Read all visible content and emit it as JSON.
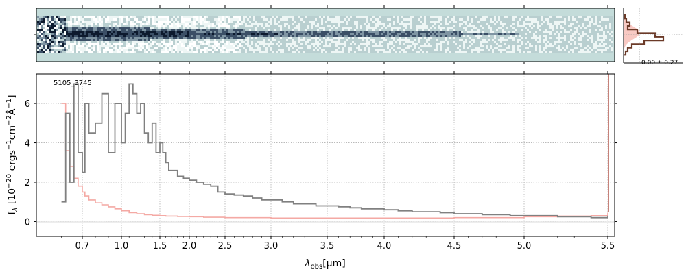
{
  "chart_data": [
    {
      "type": "heatmap",
      "name": "2D spectrum",
      "colormap": "bone-teal",
      "background_color": "#c4dcda"
    },
    {
      "type": "line",
      "object_label": "5105_3745",
      "xlabel_main": "λ",
      "xlabel_sub": "obs",
      "xlabel_unit": "[μm]",
      "ylabel": "f_λ [10^-20 ergs^-1cm^-2Å^-1]",
      "ylabel_parts": {
        "f": "f",
        "sub": "λ",
        "a": " [10",
        "exp1": "−20",
        "b": " ergs",
        "exp2": "−1",
        "c": "cm",
        "exp3": "−2",
        "d": "Å",
        "exp4": "−1",
        "e": "]"
      },
      "x_scale": "nonlinear (prism dispersion)",
      "x_ticks": [
        "0.7",
        "1.0",
        "1.5",
        "2.0",
        "2.5",
        "3.0",
        "3.5",
        "4.0",
        "4.5",
        "5.0",
        "5.5"
      ],
      "y_ticks": [
        "0",
        "2",
        "4",
        "6"
      ],
      "ylim": [
        -0.75,
        7.5
      ],
      "grid": true,
      "series": [
        {
          "color": "#808080",
          "x": [
            0.6,
            0.62,
            0.64,
            0.66,
            0.68,
            0.7,
            0.72,
            0.75,
            0.8,
            0.85,
            0.9,
            0.95,
            1.0,
            1.05,
            1.1,
            1.15,
            1.2,
            1.25,
            1.3,
            1.35,
            1.4,
            1.45,
            1.5,
            1.55,
            1.6,
            1.65,
            1.7,
            1.8,
            1.9,
            2.0,
            2.1,
            2.2,
            2.3,
            2.4,
            2.5,
            2.6,
            2.7,
            2.8,
            2.9,
            3.0,
            3.1,
            3.2,
            3.3,
            3.4,
            3.5,
            3.6,
            3.7,
            3.8,
            3.9,
            4.0,
            4.1,
            4.2,
            4.3,
            4.4,
            4.5,
            4.6,
            4.7,
            4.8,
            4.9,
            5.0,
            5.1,
            5.2,
            5.3,
            5.4,
            5.5
          ],
          "y": [
            1.0,
            5.5,
            2.0,
            7.0,
            3.5,
            2.5,
            6.0,
            4.5,
            5.0,
            6.5,
            3.5,
            6.0,
            4.0,
            5.5,
            7.0,
            6.5,
            5.5,
            6.0,
            4.5,
            4.0,
            5.0,
            3.5,
            4.0,
            3.5,
            3.0,
            2.6,
            2.6,
            2.3,
            2.2,
            2.1,
            2.0,
            1.9,
            1.8,
            1.5,
            1.4,
            1.35,
            1.3,
            1.2,
            1.1,
            1.1,
            1.0,
            0.9,
            0.9,
            0.8,
            0.8,
            0.75,
            0.7,
            0.65,
            0.65,
            0.6,
            0.55,
            0.5,
            0.5,
            0.45,
            0.4,
            0.4,
            0.35,
            0.35,
            0.3,
            0.3,
            0.3,
            0.25,
            0.25,
            0.2,
            0.3
          ]
        },
        {
          "color": "#f4a9a4",
          "x": [
            0.6,
            0.62,
            0.64,
            0.66,
            0.68,
            0.7,
            0.72,
            0.75,
            0.8,
            0.85,
            0.9,
            0.95,
            1.0,
            1.1,
            1.2,
            1.3,
            1.4,
            1.5,
            1.6,
            1.8,
            2.0,
            2.2,
            2.5,
            3.0,
            3.5,
            4.0,
            4.5,
            5.0,
            5.2,
            5.4,
            5.5
          ],
          "y": [
            6.0,
            3.6,
            2.8,
            2.2,
            1.8,
            1.5,
            1.3,
            1.1,
            0.95,
            0.85,
            0.75,
            0.65,
            0.55,
            0.45,
            0.4,
            0.35,
            0.32,
            0.3,
            0.28,
            0.26,
            0.25,
            0.22,
            0.2,
            0.18,
            0.18,
            0.18,
            0.2,
            0.25,
            0.28,
            0.3,
            0.45
          ]
        }
      ],
      "zero_line": 0
    },
    {
      "type": "histogram",
      "name": "residual distribution",
      "annotation": "0.00 ± 0.27",
      "color": "#6b3a28"
    }
  ]
}
